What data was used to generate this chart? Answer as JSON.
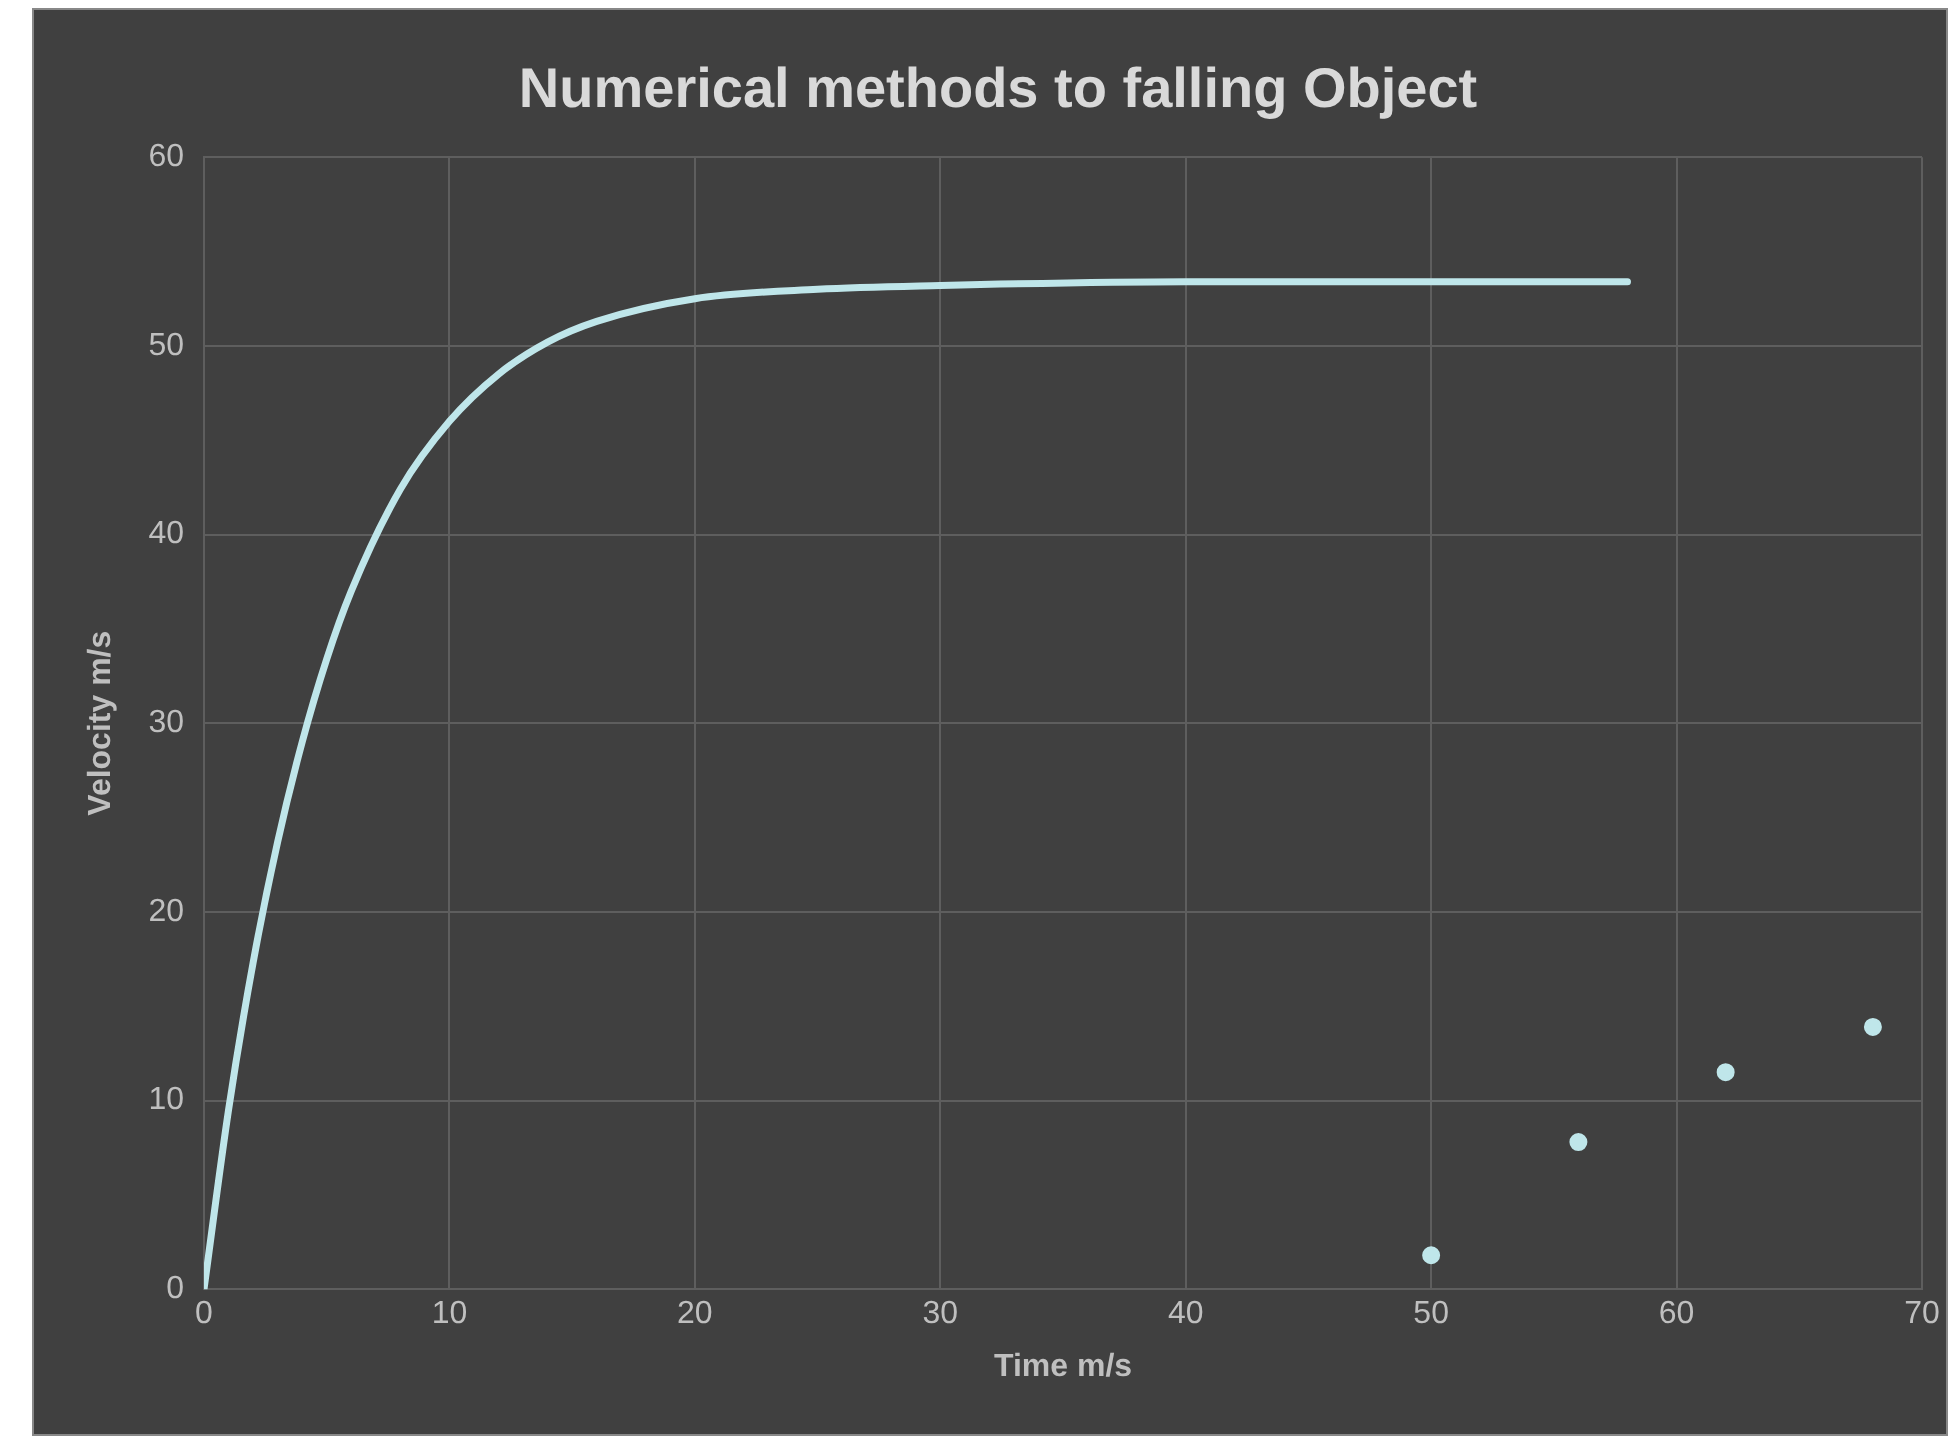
{
  "chart_data": {
    "type": "line",
    "title": "Numerical methods to falling Object",
    "xlabel": "Time m/s",
    "ylabel": "Velocity m/s",
    "xlim": [
      0,
      70
    ],
    "xticks": [
      0,
      10,
      20,
      30,
      40,
      50,
      60,
      70
    ],
    "ylim": [
      0,
      60
    ],
    "yticks": [
      0,
      10,
      20,
      30,
      40,
      50,
      60
    ],
    "grid": true,
    "legend": false,
    "series": [
      {
        "type": "line",
        "color": "#bfe6ea",
        "marker": "none",
        "x": [
          0,
          1,
          2,
          3,
          4,
          5,
          6,
          8,
          10,
          12,
          14,
          16,
          20,
          25,
          30,
          40,
          50,
          58
        ],
        "values": [
          0,
          9.5,
          17.3,
          23.7,
          29.0,
          33.4,
          37.0,
          42.4,
          46.0,
          48.5,
          50.2,
          51.3,
          52.5,
          53.0,
          53.2,
          53.4,
          53.4,
          53.4
        ]
      },
      {
        "type": "scatter",
        "color": "#bfe6ea",
        "marker": "circle",
        "x": [
          50,
          56,
          62,
          68
        ],
        "values": [
          1.8,
          7.8,
          11.5,
          13.9
        ]
      }
    ]
  }
}
